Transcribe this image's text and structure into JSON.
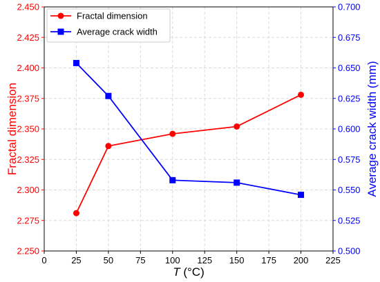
{
  "chart_data": {
    "type": "line",
    "title": "",
    "xlabel_var": "T",
    "xlabel_unit": " (°C)",
    "ylabel": "Fractal dimension",
    "y2label": "Average crack width (mm)",
    "xlim": [
      0,
      225
    ],
    "xticks": [
      "0",
      "25",
      "50",
      "75",
      "100",
      "125",
      "150",
      "175",
      "200",
      "225"
    ],
    "ylim": [
      2.25,
      2.45
    ],
    "yticks": [
      "2.250",
      "2.275",
      "2.300",
      "2.325",
      "2.350",
      "2.375",
      "2.400",
      "2.425",
      "2.450"
    ],
    "y2lim": [
      0.5,
      0.7
    ],
    "y2ticks": [
      "0.500",
      "0.525",
      "0.550",
      "0.575",
      "0.600",
      "0.625",
      "0.650",
      "0.675",
      "0.700"
    ],
    "grid": true,
    "legend_position": "top-left",
    "x": [
      25,
      50,
      100,
      150,
      200
    ],
    "series": [
      {
        "name": "Fractal dimension",
        "axis": "left",
        "color": "#ff0000",
        "marker": "circle",
        "values": [
          2.281,
          2.336,
          2.346,
          2.352,
          2.378
        ]
      },
      {
        "name": "Average crack width",
        "axis": "right",
        "color": "#0000ff",
        "marker": "square",
        "values": [
          0.654,
          0.627,
          0.558,
          0.556,
          0.546
        ]
      }
    ]
  }
}
